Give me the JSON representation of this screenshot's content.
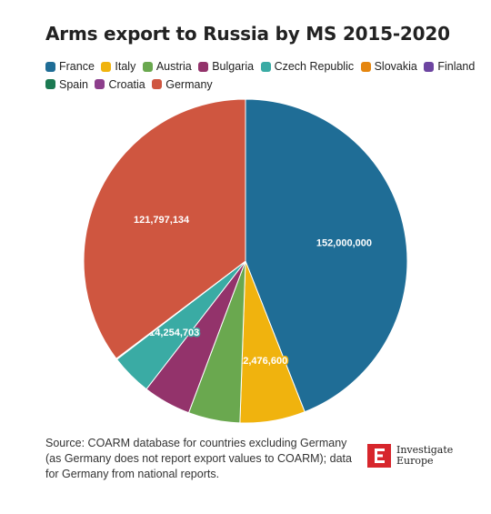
{
  "title": "Arms export to Russia by MS 2015-2020",
  "legend": [
    {
      "label": "France",
      "color": "#1f6d96"
    },
    {
      "label": "Italy",
      "color": "#f0b30e"
    },
    {
      "label": "Austria",
      "color": "#6aa84f"
    },
    {
      "label": "Bulgaria",
      "color": "#93336b"
    },
    {
      "label": "Czech Republic",
      "color": "#3aaba4"
    },
    {
      "label": "Slovakia",
      "color": "#e5860f"
    },
    {
      "label": "Finland",
      "color": "#6d45a1"
    },
    {
      "label": "Spain",
      "color": "#1c7a52"
    },
    {
      "label": "Croatia",
      "color": "#8d3f8c"
    },
    {
      "label": "Germany",
      "color": "#cf5640"
    }
  ],
  "chart_data": {
    "type": "pie",
    "title": "Arms export to Russia by MS 2015-2020",
    "slices": [
      {
        "label": "France",
        "value": 152000000,
        "value_label": "152,000,000",
        "color": "#1f6d96"
      },
      {
        "label": "Italy",
        "value": 22476600,
        "value_label": "22,476,600",
        "color": "#f0b30e"
      },
      {
        "label": "Austria",
        "value": 17800000,
        "color": "#6aa84f"
      },
      {
        "label": "Bulgaria",
        "value": 16500000,
        "color": "#93336b"
      },
      {
        "label": "Czech Republic",
        "value": 14254703,
        "value_label": "14,254,703",
        "color": "#3aaba4"
      },
      {
        "label": "Slovakia",
        "value": 150000,
        "color": "#e5860f"
      },
      {
        "label": "Finland",
        "value": 100000,
        "color": "#6d45a1"
      },
      {
        "label": "Spain",
        "value": 50000,
        "color": "#1c7a52"
      },
      {
        "label": "Croatia",
        "value": 30000,
        "color": "#8d3f8c"
      },
      {
        "label": "Germany",
        "value": 121797134,
        "value_label": "121,797,134",
        "color": "#cf5640"
      }
    ]
  },
  "source": "Source: COARM database for countries excluding Germany (as Germany does not report export values to COARM); data for Germany from national reports.",
  "logo": {
    "mark": "E",
    "line1": "Investigate",
    "line2": "Europe"
  }
}
